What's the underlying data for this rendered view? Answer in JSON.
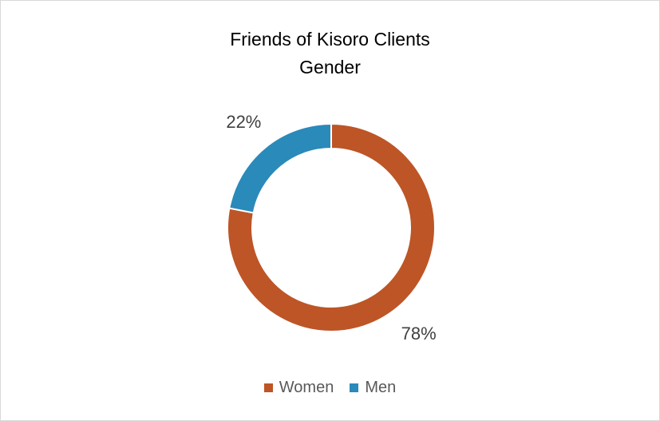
{
  "chart_data": {
    "type": "pie",
    "variant": "donut",
    "title": [
      "Friends of Kisoro Clients",
      "Gender"
    ],
    "slices": [
      {
        "label": "Women",
        "value": 78,
        "display": "78%",
        "color": "#BD5526"
      },
      {
        "label": "Men",
        "value": 22,
        "display": "22%",
        "color": "#2A8AB9"
      }
    ],
    "legend_position": "bottom"
  }
}
